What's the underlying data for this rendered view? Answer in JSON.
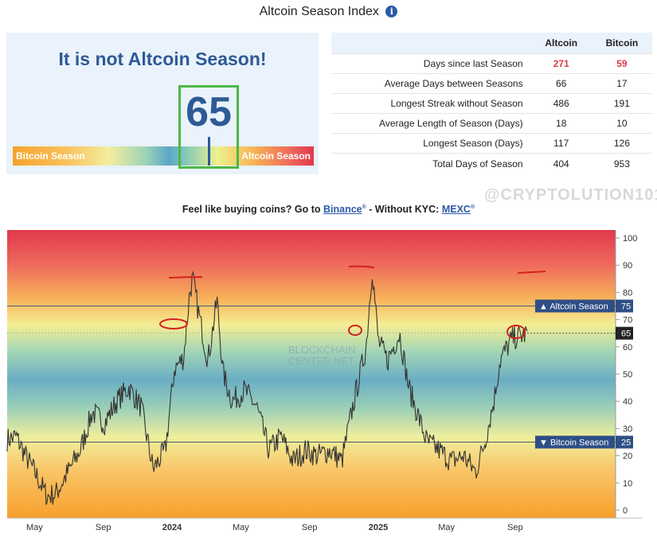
{
  "header": {
    "title": "Altcoin Season Index",
    "info_icon": "info-icon",
    "info_glyph": "i"
  },
  "meter": {
    "headline": "It is not Altcoin Season!",
    "value": "65",
    "left_label": "Bitcoin Season",
    "right_label": "Altcoin Season",
    "needle_fraction": 0.65
  },
  "stats": {
    "columns": [
      "Altcoin",
      "Bitcoin"
    ],
    "rows": [
      {
        "label": "Days since last Season",
        "altcoin": "271",
        "bitcoin": "59"
      },
      {
        "label": "Average Days between Seasons",
        "altcoin": "66",
        "bitcoin": "17"
      },
      {
        "label": "Longest Streak without Season",
        "altcoin": "486",
        "bitcoin": "191"
      },
      {
        "label": "Average Length of Season (Days)",
        "altcoin": "18",
        "bitcoin": "10"
      },
      {
        "label": "Longest Season (Days)",
        "altcoin": "117",
        "bitcoin": "126"
      },
      {
        "label": "Total Days of Season",
        "altcoin": "404",
        "bitcoin": "953"
      }
    ]
  },
  "watermark": "@CRYPTOLUTION101",
  "promo": {
    "prefix": "Feel like buying coins? Go to ",
    "link1": "Binance",
    "middle": " - Without KYC: ",
    "link2": "MEXC",
    "mark": "®"
  },
  "colors": {
    "accent": "#2e5a96",
    "highlight": "#4cb848",
    "alert": "#e0394c",
    "annotation": "#d42020"
  },
  "chart_data": {
    "type": "line",
    "ylim": [
      0,
      100
    ],
    "y_ticks": [
      "0",
      "10",
      "20",
      "30",
      "40",
      "50",
      "60",
      "70",
      "80",
      "90",
      "100"
    ],
    "x_tick_labels": [
      "May",
      "Sep",
      "2024",
      "May",
      "Sep",
      "2025",
      "May",
      "Sep"
    ],
    "watermark": "BLOCKCHAIN CENTER.NET",
    "current_value": "65",
    "thresholds": [
      {
        "label": "Altcoin Season",
        "value": 75
      },
      {
        "label": "Bitcoin Season",
        "value": 25
      }
    ],
    "series_keypoints": [
      [
        0,
        26
      ],
      [
        0.015,
        27
      ],
      [
        0.03,
        20
      ],
      [
        0.05,
        12
      ],
      [
        0.065,
        5
      ],
      [
        0.08,
        6
      ],
      [
        0.1,
        14
      ],
      [
        0.12,
        22
      ],
      [
        0.14,
        36
      ],
      [
        0.16,
        32
      ],
      [
        0.18,
        40
      ],
      [
        0.2,
        45
      ],
      [
        0.22,
        38
      ],
      [
        0.24,
        15
      ],
      [
        0.26,
        22
      ],
      [
        0.275,
        52
      ],
      [
        0.29,
        56
      ],
      [
        0.3,
        80
      ],
      [
        0.305,
        85
      ],
      [
        0.315,
        72
      ],
      [
        0.33,
        55
      ],
      [
        0.345,
        77
      ],
      [
        0.355,
        50
      ],
      [
        0.37,
        40
      ],
      [
        0.39,
        44
      ],
      [
        0.41,
        38
      ],
      [
        0.43,
        22
      ],
      [
        0.45,
        27
      ],
      [
        0.47,
        18
      ],
      [
        0.49,
        22
      ],
      [
        0.51,
        20
      ],
      [
        0.53,
        22
      ],
      [
        0.55,
        18
      ],
      [
        0.57,
        40
      ],
      [
        0.59,
        60
      ],
      [
        0.6,
        89
      ],
      [
        0.61,
        62
      ],
      [
        0.625,
        55
      ],
      [
        0.645,
        65
      ],
      [
        0.66,
        45
      ],
      [
        0.675,
        35
      ],
      [
        0.69,
        25
      ],
      [
        0.71,
        22
      ],
      [
        0.73,
        18
      ],
      [
        0.75,
        20
      ],
      [
        0.77,
        14
      ],
      [
        0.785,
        25
      ],
      [
        0.8,
        40
      ],
      [
        0.81,
        55
      ],
      [
        0.83,
        63
      ],
      [
        0.845,
        64
      ],
      [
        0.855,
        65
      ]
    ]
  }
}
